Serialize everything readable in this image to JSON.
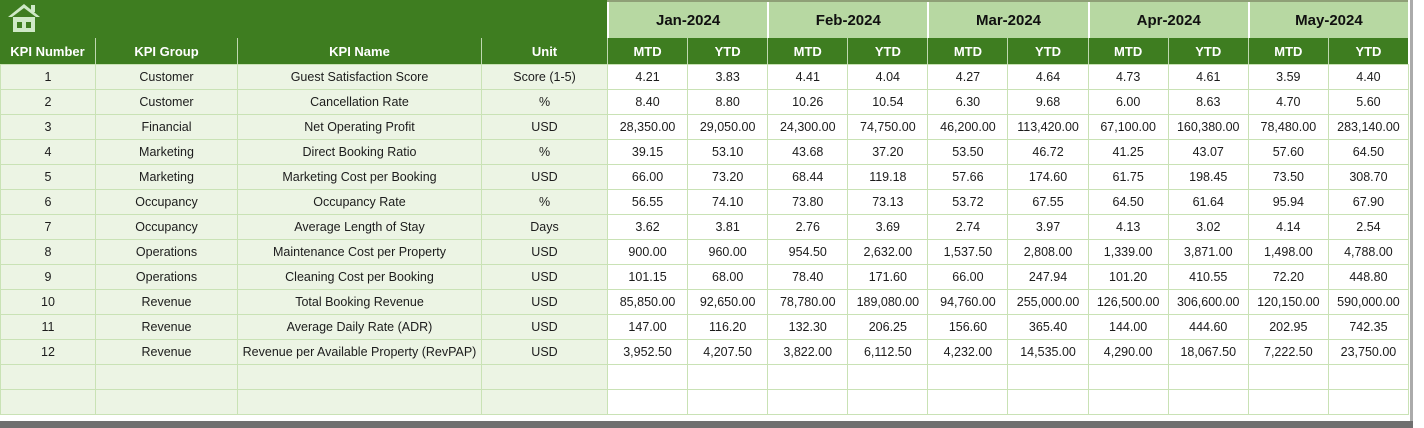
{
  "table": {
    "left_headers": [
      "KPI Number",
      "KPI Group",
      "KPI Name",
      "Unit"
    ],
    "months": [
      "Jan-2024",
      "Feb-2024",
      "Mar-2024",
      "Apr-2024",
      "May-2024"
    ],
    "sub_headers": [
      "MTD",
      "YTD"
    ],
    "rows": [
      {
        "number": "1",
        "group": "Customer",
        "name": "Guest Satisfaction Score",
        "unit": "Score (1-5)",
        "values": [
          "4.21",
          "3.83",
          "4.41",
          "4.04",
          "4.27",
          "4.64",
          "4.73",
          "4.61",
          "3.59",
          "4.40"
        ]
      },
      {
        "number": "2",
        "group": "Customer",
        "name": "Cancellation Rate",
        "unit": "%",
        "values": [
          "8.40",
          "8.80",
          "10.26",
          "10.54",
          "6.30",
          "9.68",
          "6.00",
          "8.63",
          "4.70",
          "5.60"
        ]
      },
      {
        "number": "3",
        "group": "Financial",
        "name": "Net Operating Profit",
        "unit": "USD",
        "values": [
          "28,350.00",
          "29,050.00",
          "24,300.00",
          "74,750.00",
          "46,200.00",
          "113,420.00",
          "67,100.00",
          "160,380.00",
          "78,480.00",
          "283,140.00"
        ]
      },
      {
        "number": "4",
        "group": "Marketing",
        "name": "Direct Booking Ratio",
        "unit": "%",
        "values": [
          "39.15",
          "53.10",
          "43.68",
          "37.20",
          "53.50",
          "46.72",
          "41.25",
          "43.07",
          "57.60",
          "64.50"
        ]
      },
      {
        "number": "5",
        "group": "Marketing",
        "name": "Marketing Cost per Booking",
        "unit": "USD",
        "values": [
          "66.00",
          "73.20",
          "68.44",
          "119.18",
          "57.66",
          "174.60",
          "61.75",
          "198.45",
          "73.50",
          "308.70"
        ]
      },
      {
        "number": "6",
        "group": "Occupancy",
        "name": "Occupancy Rate",
        "unit": "%",
        "values": [
          "56.55",
          "74.10",
          "73.80",
          "73.13",
          "53.72",
          "67.55",
          "64.50",
          "61.64",
          "95.94",
          "67.90"
        ]
      },
      {
        "number": "7",
        "group": "Occupancy",
        "name": "Average Length of Stay",
        "unit": "Days",
        "values": [
          "3.62",
          "3.81",
          "2.76",
          "3.69",
          "2.74",
          "3.97",
          "4.13",
          "3.02",
          "4.14",
          "2.54"
        ]
      },
      {
        "number": "8",
        "group": "Operations",
        "name": "Maintenance Cost per Property",
        "unit": "USD",
        "values": [
          "900.00",
          "960.00",
          "954.50",
          "2,632.00",
          "1,537.50",
          "2,808.00",
          "1,339.00",
          "3,871.00",
          "1,498.00",
          "4,788.00"
        ]
      },
      {
        "number": "9",
        "group": "Operations",
        "name": "Cleaning Cost per Booking",
        "unit": "USD",
        "values": [
          "101.15",
          "68.00",
          "78.40",
          "171.60",
          "66.00",
          "247.94",
          "101.20",
          "410.55",
          "72.20",
          "448.80"
        ]
      },
      {
        "number": "10",
        "group": "Revenue",
        "name": "Total Booking Revenue",
        "unit": "USD",
        "values": [
          "85,850.00",
          "92,650.00",
          "78,780.00",
          "189,080.00",
          "94,760.00",
          "255,000.00",
          "126,500.00",
          "306,600.00",
          "120,150.00",
          "590,000.00"
        ]
      },
      {
        "number": "11",
        "group": "Revenue",
        "name": "Average Daily Rate (ADR)",
        "unit": "USD",
        "values": [
          "147.00",
          "116.20",
          "132.30",
          "206.25",
          "156.60",
          "365.40",
          "144.00",
          "444.60",
          "202.95",
          "742.35"
        ]
      },
      {
        "number": "12",
        "group": "Revenue",
        "name": "Revenue per Available Property (RevPAP)",
        "unit": "USD",
        "values": [
          "3,952.50",
          "4,207.50",
          "3,822.00",
          "6,112.50",
          "4,232.00",
          "14,535.00",
          "4,290.00",
          "18,067.50",
          "7,222.50",
          "23,750.00"
        ]
      }
    ],
    "empty_row_count": 2
  },
  "icons": {
    "home": "home-icon"
  },
  "colors": {
    "header_dark_green": "#3e7d20",
    "month_light_green": "#b7d8a2",
    "row_tint_green": "#ecf4e4",
    "gridline_green": "#c9e2b5",
    "icon_pale_green": "#cfe9c7",
    "window_edge_gray": "#6f6f6f"
  }
}
